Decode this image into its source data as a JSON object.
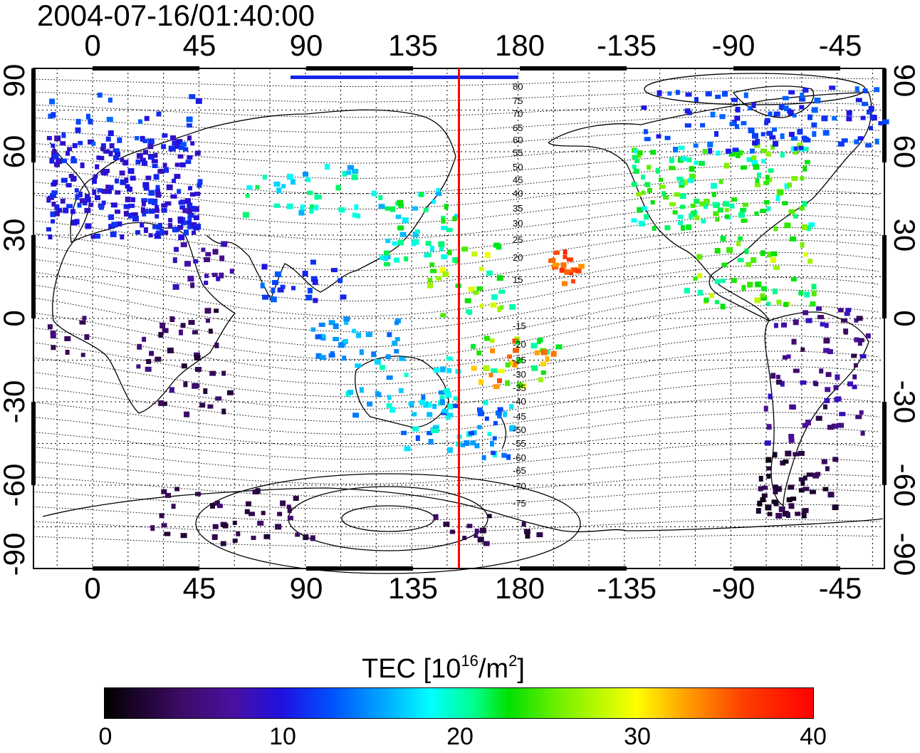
{
  "title": "2004-07-16/01:40:00",
  "top_lon_ticks": [
    "0",
    "45",
    "90",
    "135",
    "180",
    "-135",
    "-90",
    "-45"
  ],
  "bottom_lon_ticks": [
    "0",
    "45",
    "90",
    "135",
    "180",
    "-135",
    "-90",
    "-45"
  ],
  "left_lat_ticks": [
    "90",
    "60",
    "30",
    "0",
    "-30",
    "-60",
    "-90"
  ],
  "right_lat_ticks": [
    "90",
    "60",
    "30",
    "0",
    "-30",
    "-60",
    "-90"
  ],
  "contour_labels": [
    "80",
    "75",
    "70",
    "65",
    "60",
    "55",
    "50",
    "45",
    "40",
    "35",
    "30",
    "25",
    "20",
    "15",
    "-15",
    "-20",
    "-25",
    "-30",
    "-35",
    "-40",
    "-45",
    "-50",
    "-55",
    "-60",
    "-65",
    "-70",
    "-75"
  ],
  "colorbar": {
    "title": "TEC  [10",
    "title_sup1": "16",
    "title_mid": "/m",
    "title_sup2": "2",
    "title_end": "]",
    "ticks": [
      "0",
      "10",
      "20",
      "30",
      "40"
    ]
  },
  "colors": {
    "terminator_line": "#ff0000",
    "contour": "#000000",
    "coastline": "#000000"
  },
  "map_data": {
    "projection": "equirectangular",
    "lon_range": [
      -25,
      335
    ],
    "lat_range": [
      -90,
      90
    ],
    "terminator_lon": 155,
    "tec_range": [
      0,
      40
    ]
  }
}
